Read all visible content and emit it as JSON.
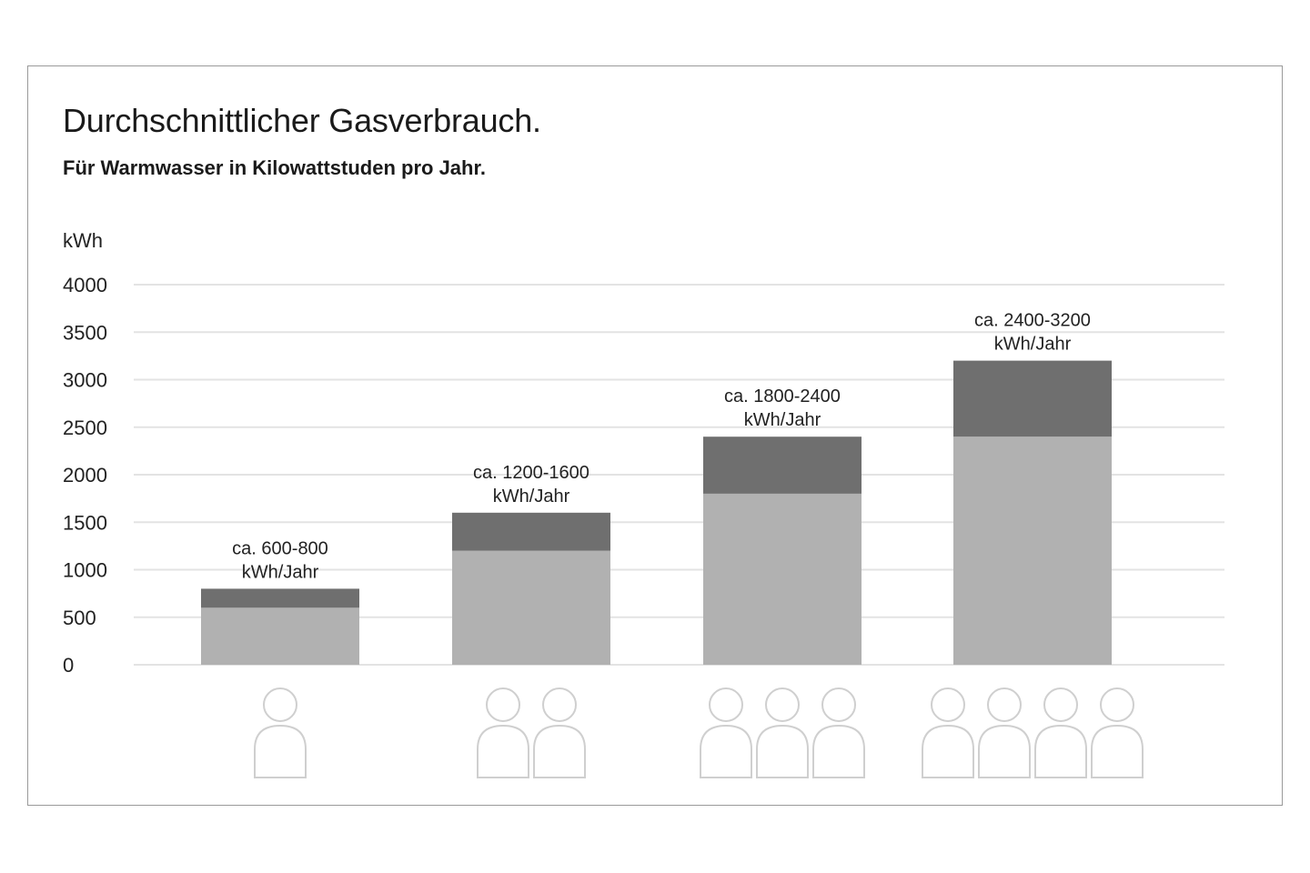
{
  "chart_data": {
    "type": "bar",
    "stacked": true,
    "title": "Durchschnittlicher Gasverbrauch.",
    "subtitle": "Für Warmwasser in Kilowattstuden pro Jahr.",
    "ylabel": "kWh",
    "ylim": [
      0,
      4000
    ],
    "yticks": [
      0,
      500,
      1000,
      1500,
      2000,
      2500,
      3000,
      3500,
      4000
    ],
    "grid": true,
    "categories": [
      "1 Person",
      "2 Personen",
      "3 Personen",
      "4 Personen"
    ],
    "persons": [
      1,
      2,
      3,
      4
    ],
    "series": [
      {
        "values": [
          600,
          1200,
          1800,
          2400
        ],
        "color": "#b1b1b1"
      },
      {
        "values": [
          200,
          400,
          600,
          800
        ],
        "color": "#6f6f6f"
      }
    ],
    "totals": [
      800,
      1600,
      2400,
      3200
    ],
    "annotations": [
      [
        "ca. 600-800",
        "kWh/Jahr"
      ],
      [
        "ca. 1200-1600",
        "kWh/Jahr"
      ],
      [
        "ca. 1800-2400",
        "kWh/Jahr"
      ],
      [
        "ca. 2400-3200",
        "kWh/Jahr"
      ]
    ],
    "colors": {
      "grid": "#e3e3e3",
      "icon_stroke": "#cfcfcf",
      "text": "#222222"
    }
  }
}
